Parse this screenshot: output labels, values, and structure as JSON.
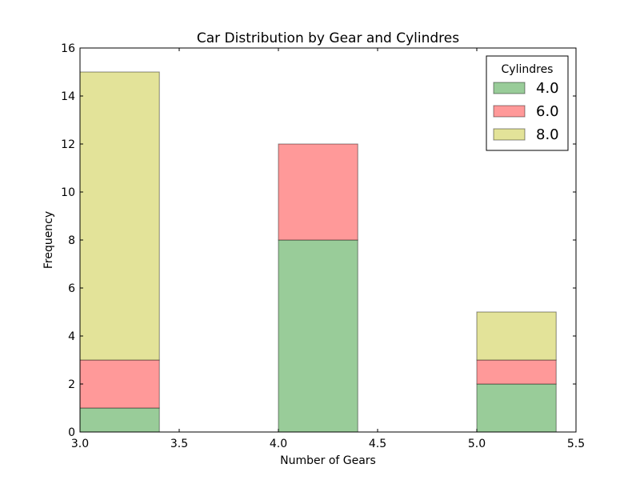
{
  "chart_data": {
    "type": "bar",
    "stacked": true,
    "title": "Car Distribution by Gear and Cylindres",
    "xlabel": "Number of Gears",
    "ylabel": "Frequency",
    "xlim": [
      3.0,
      5.5
    ],
    "ylim": [
      0,
      16
    ],
    "xticks": [
      "3.0",
      "3.5",
      "4.0",
      "4.5",
      "5.0",
      "5.5"
    ],
    "xtick_values": [
      3.0,
      3.5,
      4.0,
      4.5,
      5.0,
      5.5
    ],
    "yticks": [
      "0",
      "2",
      "4",
      "6",
      "8",
      "10",
      "12",
      "14",
      "16"
    ],
    "ytick_values": [
      0,
      2,
      4,
      6,
      8,
      10,
      12,
      14,
      16
    ],
    "bins": [
      {
        "start": 3.0,
        "end": 3.4
      },
      {
        "start": 4.0,
        "end": 4.4
      },
      {
        "start": 5.0,
        "end": 5.4
      }
    ],
    "series": [
      {
        "name": "4.0",
        "color": "#99cc99",
        "values": [
          1,
          8,
          2
        ]
      },
      {
        "name": "6.0",
        "color": "#ff9999",
        "values": [
          2,
          4,
          1
        ]
      },
      {
        "name": "8.0",
        "color": "#e3e399",
        "values": [
          12,
          0,
          2
        ]
      }
    ],
    "legend": {
      "title": "Cylindres",
      "placement": "top-right"
    },
    "grid": false
  }
}
